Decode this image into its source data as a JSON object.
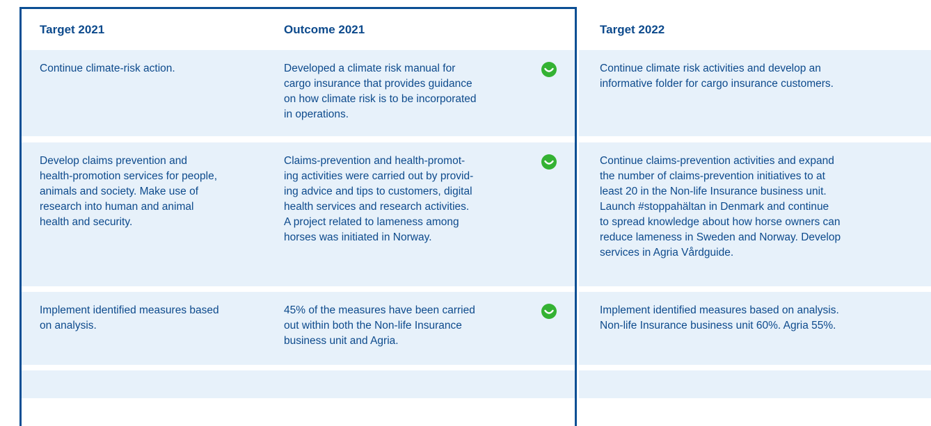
{
  "header": {
    "columns": [
      "Target 2021",
      "Outcome 2021",
      "Target 2022"
    ]
  },
  "table": {
    "rows": [
      [
        [
          "Continue climate-risk action."
        ],
        [
          "Developed a climate risk manual for",
          "cargo insurance that provides guidance",
          "on how climate risk is to be incorporated",
          "in operations."
        ],
        [
          "Continue climate risk activities and develop an",
          "informative folder for cargo insurance customers."
        ]
      ],
      [
        [
          "Develop claims prevention and",
          "health-promotion services for people,",
          "animals and society. Make use of",
          "research into human and animal",
          "health and security."
        ],
        [
          "Claims-prevention and health-promot-",
          "ing activities were carried out by provid-",
          "ing advice and tips to customers, digital",
          "health services and research activities.",
          "A project related to lameness among",
          "horses was initiated in Norway."
        ],
        [
          "Continue claims-prevention activities and expand",
          "the number of claims-prevention initiatives to at",
          "least 20 in the Non-life Insurance business unit.",
          "Launch #stoppahältan in Denmark and continue",
          "to spread knowledge about how horse owners can",
          "reduce lameness in Sweden and Norway. Develop",
          "services in Agria Vårdguide."
        ]
      ],
      [
        [
          "Implement identified measures based",
          "on analysis."
        ],
        [
          "45% of the measures have been carried",
          "out within both the Non-life Insurance",
          "business unit and Agria."
        ],
        [
          "Implement identified measures based on analysis.",
          "Non-life Insurance business unit 60%. Agria 55%."
        ]
      ]
    ]
  }
}
